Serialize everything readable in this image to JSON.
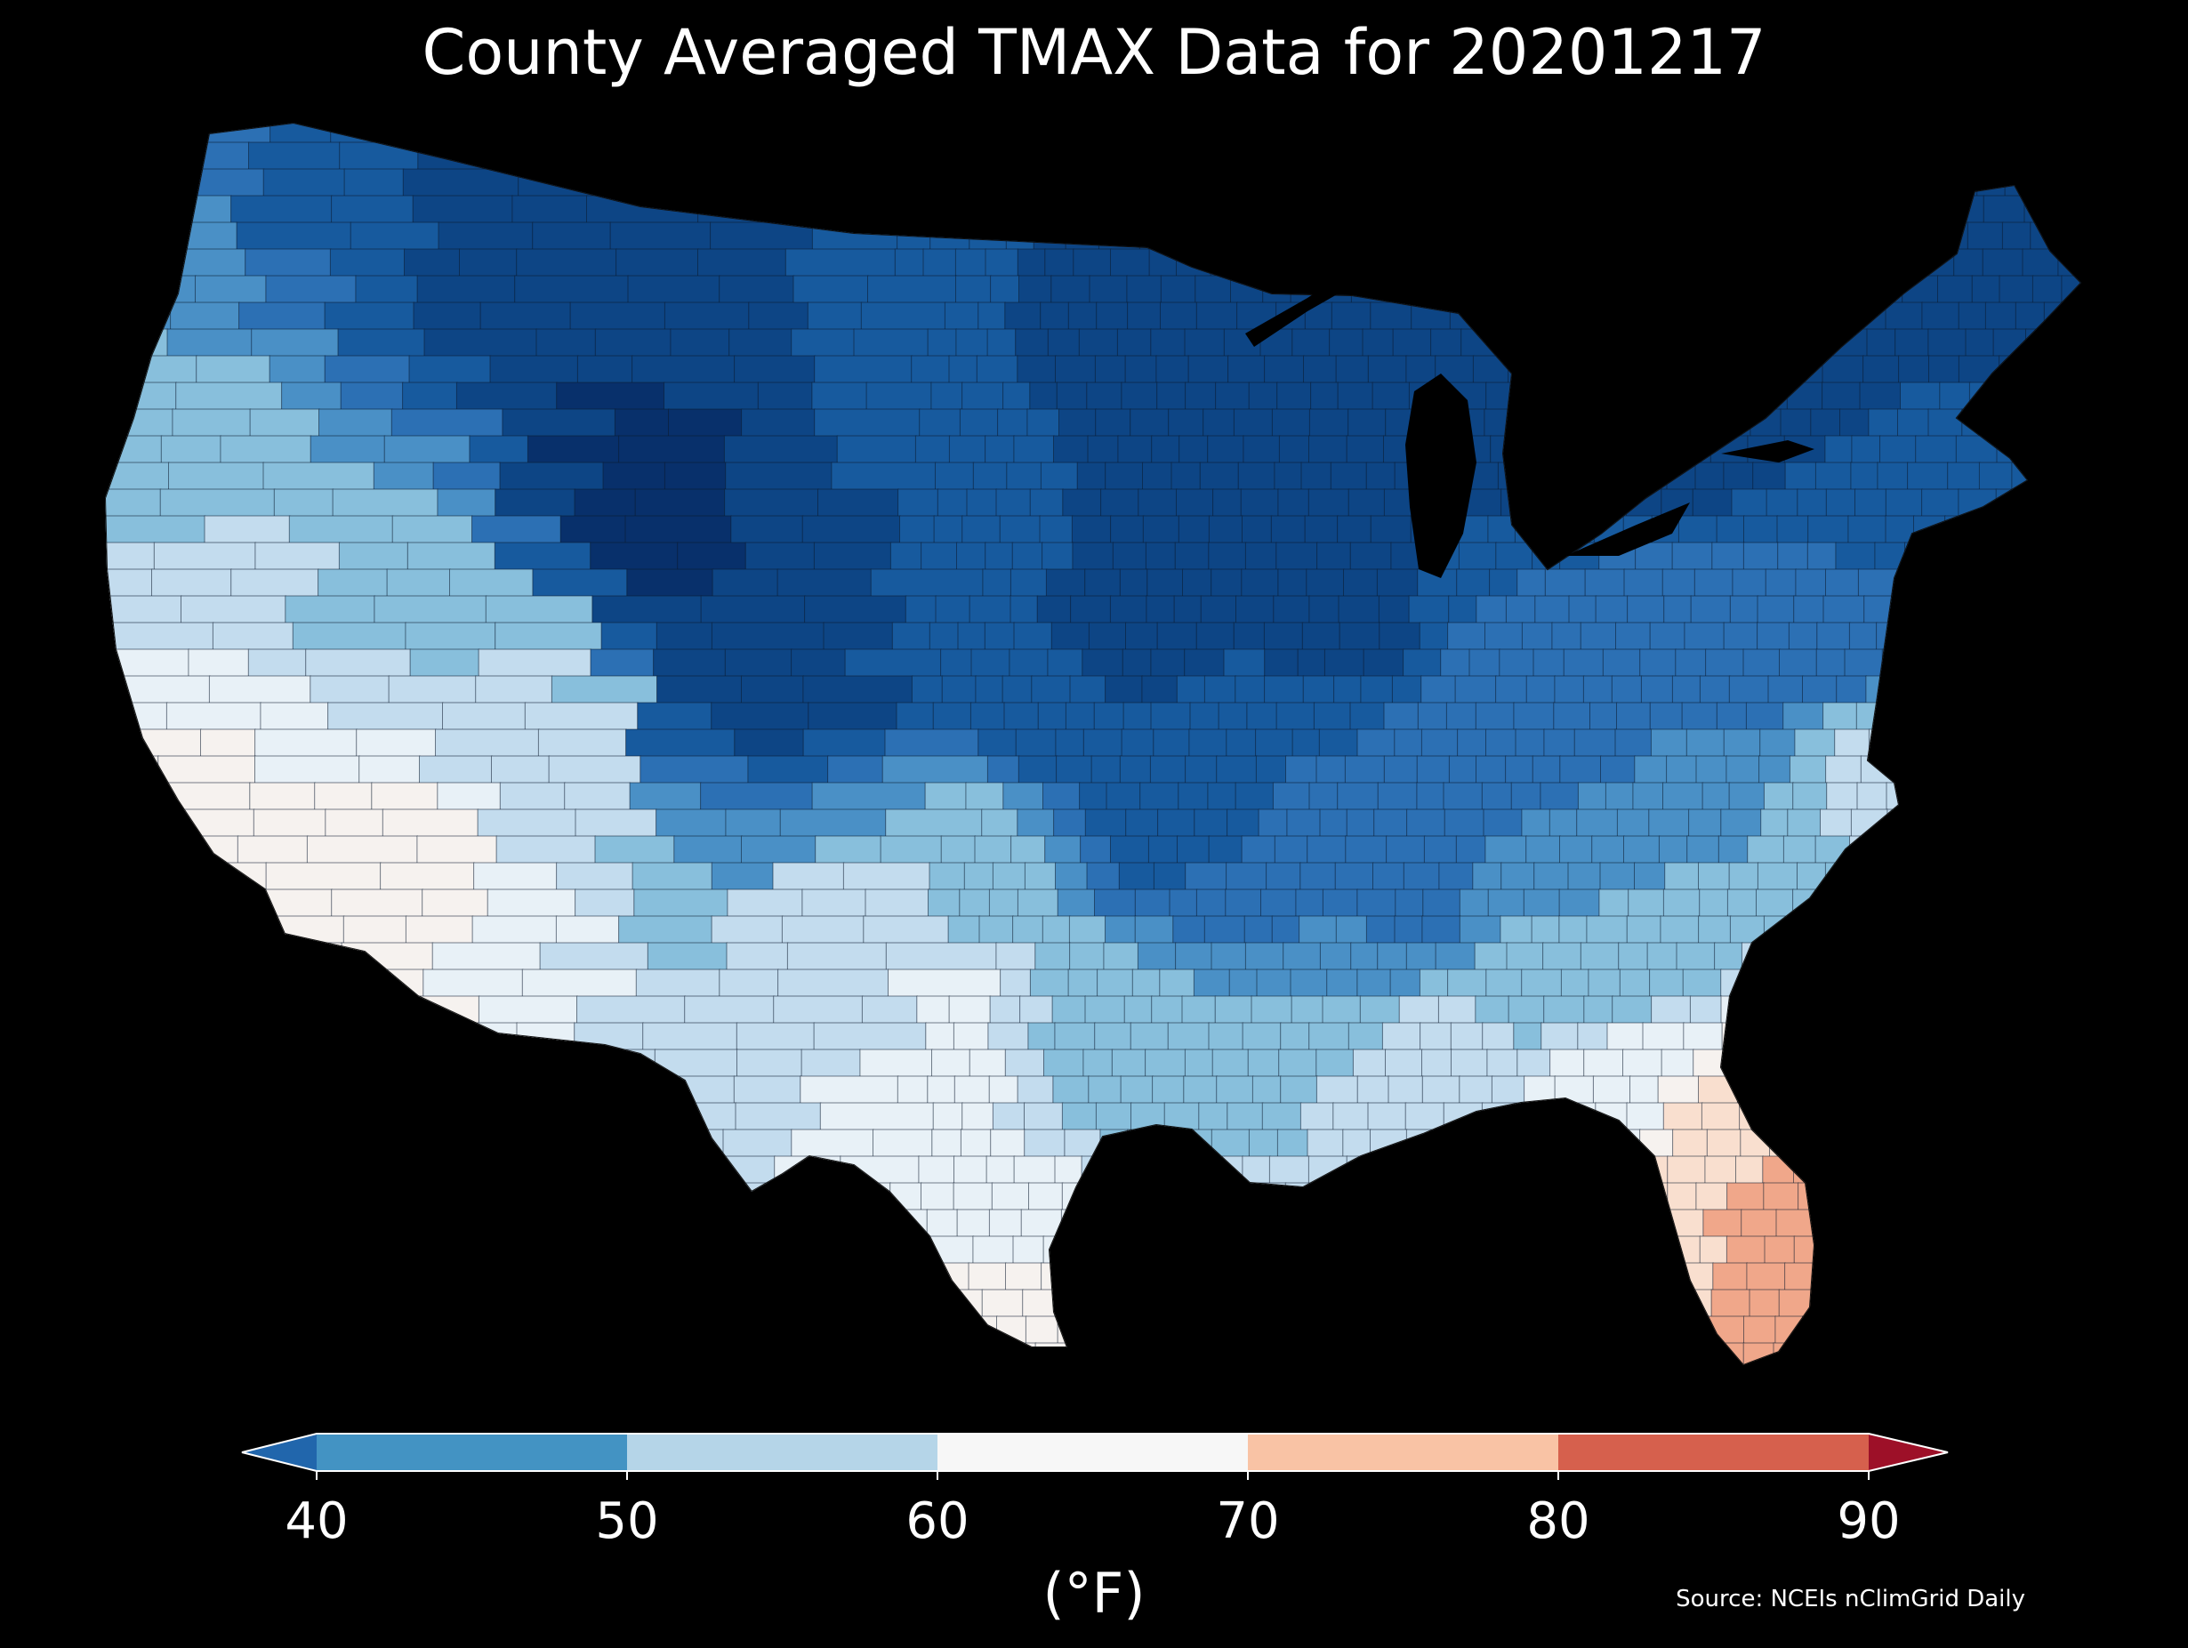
{
  "title": "County Averaged TMAX Data for 20201217",
  "colorbar": {
    "ticks": [
      "40",
      "50",
      "60",
      "70",
      "80",
      "90"
    ],
    "min": 40,
    "max": 90,
    "bins": [
      {
        "from": 40,
        "to": 50,
        "color": "#4393c3"
      },
      {
        "from": 50,
        "to": 60,
        "color": "#b5d5e8"
      },
      {
        "from": 60,
        "to": 70,
        "color": "#f7f7f7"
      },
      {
        "from": 70,
        "to": 80,
        "color": "#f9c3a5"
      },
      {
        "from": 80,
        "to": 90,
        "color": "#d6604d"
      }
    ],
    "under_color": "#2166ac",
    "over_color": "#9d1028",
    "unit_label": "(°F)"
  },
  "map": {
    "colors": {
      "lt30": "#08306b",
      "r30_35": "#0d4585",
      "r35_40": "#175a9e",
      "r40_45": "#2c70b4",
      "r45_50": "#4a90c6",
      "r50_55": "#88bfdc",
      "r55_60": "#c3dcee",
      "r60_65": "#e8f1f7",
      "r65_70": "#f6f2ef",
      "r70_75": "#f9dfcf",
      "r75_80": "#f0a78a",
      "r80p": "#e07a5f"
    }
  },
  "source": "Source: NCEIs nClimGrid Daily"
}
